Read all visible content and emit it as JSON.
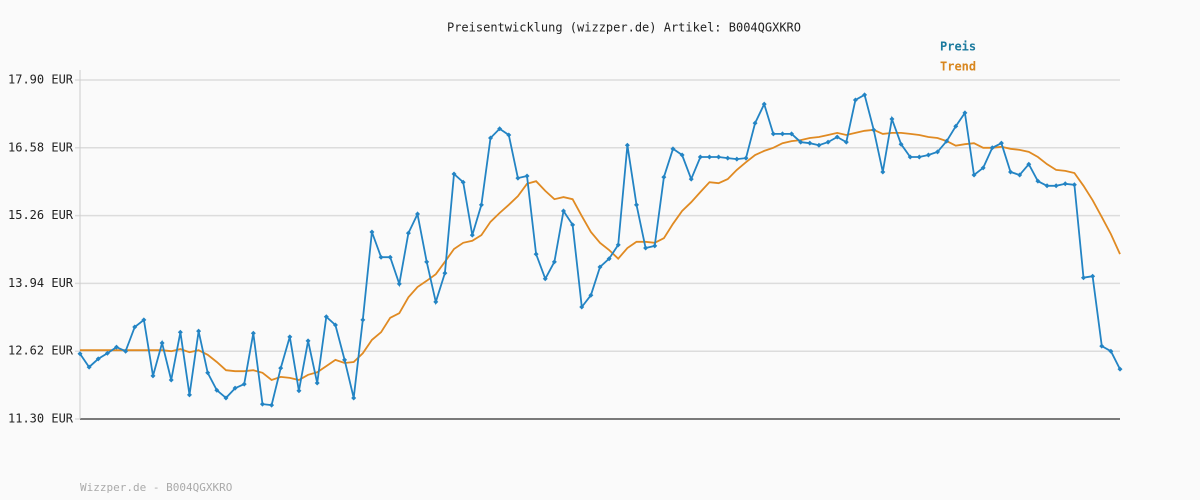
{
  "chart_data": {
    "type": "line",
    "title": "Preisentwicklung (wizzper.de) Artikel: B004QGXKRO",
    "footer": "Wizzper.de - B004QGXKRO",
    "legend": "top-right",
    "grid": true,
    "ylim": [
      11.3,
      17.9
    ],
    "yticks": [
      {
        "value": 11.3,
        "label": "11.30 EUR"
      },
      {
        "value": 12.62,
        "label": "12.62 EUR"
      },
      {
        "value": 13.94,
        "label": "13.94 EUR"
      },
      {
        "value": 15.26,
        "label": "15.26 EUR"
      },
      {
        "value": 16.58,
        "label": "16.58 EUR"
      },
      {
        "value": 17.9,
        "label": "17.90 EUR"
      }
    ],
    "categories": [
      null,
      null,
      null,
      null,
      null,
      null,
      null,
      null,
      null,
      null,
      null,
      null,
      null,
      null,
      null,
      null,
      null,
      null,
      null,
      null,
      null,
      null,
      null,
      null,
      null,
      null,
      null,
      null,
      null,
      null,
      null,
      null,
      null,
      null,
      null,
      null,
      null,
      null,
      null,
      null,
      null,
      null,
      null,
      null,
      null,
      null,
      null,
      null,
      null,
      null,
      null,
      null,
      null,
      null,
      null,
      null,
      null,
      null,
      null,
      null,
      null,
      null,
      null,
      null,
      null,
      null,
      null,
      null,
      null,
      null,
      null,
      null,
      null,
      null,
      null,
      null,
      null,
      null,
      null,
      null,
      null,
      null,
      null,
      null,
      null,
      null,
      null,
      null,
      null,
      null,
      null,
      null,
      null,
      null,
      null,
      null,
      null,
      null,
      null,
      null,
      null,
      null,
      null,
      null,
      null,
      null,
      null,
      null,
      null,
      null,
      null,
      null,
      null,
      null,
      null
    ],
    "series": [
      {
        "name": "Preis",
        "color": "#2384c4",
        "label_color": "#1b7a9e",
        "markers": true,
        "values": [
          12.57,
          12.31,
          12.47,
          12.58,
          12.7,
          12.62,
          13.09,
          13.23,
          12.14,
          12.78,
          12.06,
          12.99,
          11.77,
          13.01,
          12.2,
          11.86,
          11.71,
          11.9,
          11.98,
          12.97,
          11.59,
          11.57,
          12.29,
          12.9,
          11.85,
          12.82,
          12.0,
          13.29,
          13.13,
          12.45,
          11.71,
          13.23,
          14.94,
          14.45,
          14.45,
          13.93,
          14.92,
          15.29,
          14.36,
          13.58,
          14.14,
          16.07,
          15.91,
          14.88,
          15.47,
          16.77,
          16.95,
          16.83,
          15.99,
          16.03,
          14.51,
          14.03,
          14.36,
          15.35,
          15.08,
          13.48,
          13.71,
          14.26,
          14.42,
          14.69,
          16.63,
          15.47,
          14.63,
          14.67,
          16.01,
          16.56,
          16.44,
          15.97,
          16.4,
          16.4,
          16.4,
          16.38,
          16.36,
          16.38,
          17.06,
          17.43,
          16.85,
          16.85,
          16.85,
          16.69,
          16.67,
          16.63,
          16.69,
          16.79,
          16.69,
          17.51,
          17.61,
          16.93,
          16.11,
          17.14,
          16.65,
          16.4,
          16.4,
          16.44,
          16.5,
          16.71,
          17.0,
          17.26,
          16.05,
          16.19,
          16.58,
          16.67,
          16.11,
          16.05,
          16.26,
          15.93,
          15.84,
          15.84,
          15.88,
          15.86,
          14.05,
          14.08,
          12.72,
          12.62,
          12.27
        ]
      },
      {
        "name": "Trend",
        "color": "#e08a22",
        "label_color": "#d8861e",
        "markers": false,
        "values": [
          12.64,
          12.64,
          12.64,
          12.64,
          12.64,
          12.64,
          12.64,
          12.64,
          12.64,
          12.64,
          12.62,
          12.66,
          12.6,
          12.64,
          12.55,
          12.41,
          12.25,
          12.23,
          12.23,
          12.25,
          12.2,
          12.06,
          12.12,
          12.1,
          12.06,
          12.16,
          12.21,
          12.33,
          12.45,
          12.39,
          12.41,
          12.58,
          12.84,
          12.99,
          13.27,
          13.36,
          13.67,
          13.87,
          13.99,
          14.12,
          14.36,
          14.61,
          14.73,
          14.77,
          14.88,
          15.14,
          15.31,
          15.47,
          15.64,
          15.88,
          15.93,
          15.74,
          15.58,
          15.62,
          15.58,
          15.25,
          14.94,
          14.73,
          14.59,
          14.42,
          14.63,
          14.75,
          14.75,
          14.73,
          14.82,
          15.1,
          15.35,
          15.52,
          15.72,
          15.91,
          15.89,
          15.97,
          16.15,
          16.3,
          16.44,
          16.52,
          16.58,
          16.67,
          16.71,
          16.73,
          16.77,
          16.79,
          16.83,
          16.87,
          16.83,
          16.87,
          16.91,
          16.93,
          16.85,
          16.87,
          16.87,
          16.85,
          16.83,
          16.79,
          16.77,
          16.71,
          16.62,
          16.65,
          16.67,
          16.58,
          16.58,
          16.6,
          16.56,
          16.54,
          16.5,
          16.4,
          16.26,
          16.15,
          16.13,
          16.09,
          15.84,
          15.56,
          15.23,
          14.9,
          14.51
        ]
      }
    ]
  }
}
